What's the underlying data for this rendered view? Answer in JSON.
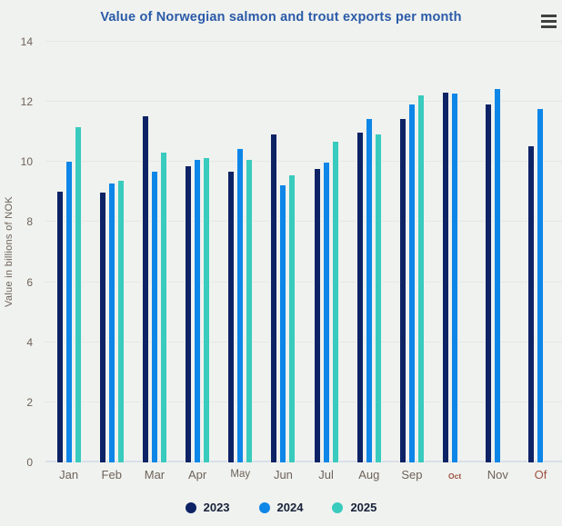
{
  "header": {
    "menu_icon": "hamburger-menu-icon"
  },
  "chart_data": {
    "type": "bar",
    "title": "Value of Norwegian salmon and trout exports per month",
    "ylabel": "Value in billions of NOK",
    "xlabel": "",
    "ylim": [
      0,
      14
    ],
    "yticks": [
      0,
      2,
      4,
      6,
      8,
      10,
      12,
      14
    ],
    "grid": true,
    "legend_position": "bottom",
    "categories": [
      "Jan",
      "Feb",
      "Mar",
      "Apr",
      "May",
      "Jun",
      "Jul",
      "Aug",
      "Sep",
      "Oct",
      "Nov",
      "Of"
    ],
    "category_styles": {
      "May": "alt",
      "Oct": "small-accent",
      "Of": "accent"
    },
    "series": [
      {
        "name": "2023",
        "color": "#0d2365",
        "values": [
          9.05,
          9.0,
          11.55,
          9.9,
          9.7,
          10.95,
          9.8,
          11.0,
          11.45,
          12.35,
          11.95,
          10.55
        ]
      },
      {
        "name": "2024",
        "color": "#0e86e8",
        "values": [
          10.05,
          9.3,
          9.7,
          10.1,
          10.45,
          9.25,
          10.0,
          11.45,
          11.95,
          12.3,
          12.45,
          11.8
        ]
      },
      {
        "name": "2025",
        "color": "#39cbbd",
        "values": [
          11.2,
          9.4,
          10.35,
          10.15,
          10.1,
          9.6,
          10.7,
          10.95,
          12.25,
          null,
          null,
          null
        ]
      }
    ]
  },
  "colors": {
    "bg": "#f0f2ef",
    "grid": "#e4e8e3",
    "baseline": "#d9dfe9",
    "title": "#2a5aa8",
    "tick": "#6e6259",
    "accent_tick": "#9b5140",
    "legend_text": "#18213a",
    "bar_stroke": "#eef1ee",
    "menu": "#404040"
  }
}
